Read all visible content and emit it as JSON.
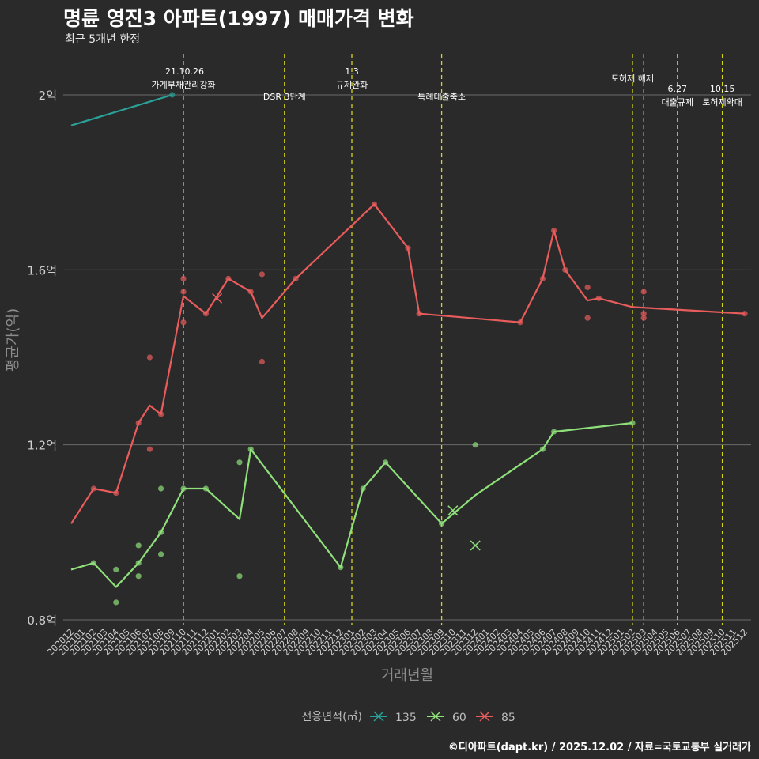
{
  "header": {
    "title": "명륜 영진3 아파트(1997) 매매가격 변화",
    "subtitle": "최근 5개년 한정"
  },
  "caption": "©디아파트(dapt.kr) / 2025.12.02 / 자료=국토교통부 실거래가",
  "chart_data": {
    "type": "line",
    "title": "명륜 영진3 아파트(1997) 매매가격 변화",
    "subtitle": "최근 5개년 한정",
    "xlabel": "거래년월",
    "ylabel": "평균가(억)",
    "x_categories": [
      "202012",
      "202101",
      "202102",
      "202103",
      "202104",
      "202105",
      "202106",
      "202107",
      "202108",
      "202109",
      "202110",
      "202111",
      "202112",
      "202201",
      "202202",
      "202203",
      "202204",
      "202205",
      "202206",
      "202207",
      "202208",
      "202209",
      "202210",
      "202211",
      "202212",
      "202301",
      "202302",
      "202303",
      "202304",
      "202305",
      "202306",
      "202307",
      "202308",
      "202309",
      "202310",
      "202311",
      "202312",
      "202401",
      "202402",
      "202403",
      "202404",
      "202405",
      "202406",
      "202407",
      "202408",
      "202409",
      "202410",
      "202411",
      "202412",
      "202501",
      "202502",
      "202503",
      "202504",
      "202505",
      "202506",
      "202507",
      "202508",
      "202509",
      "202510",
      "202511",
      "202512"
    ],
    "y_ticks": [
      {
        "value": 0.8,
        "label": "0.8억"
      },
      {
        "value": 1.2,
        "label": "1.2억"
      },
      {
        "value": 1.6,
        "label": "1.6억"
      },
      {
        "value": 2.0,
        "label": "2억"
      }
    ],
    "ylim": [
      0.78,
      2.12
    ],
    "legend_title": "전용면적(㎡)",
    "legend_position": "bottom",
    "series": [
      {
        "name": "135",
        "color": "#2aa198",
        "line": [
          [
            "202012",
            1.93
          ],
          [
            "202109",
            2.0
          ]
        ],
        "points": [
          [
            "202109",
            2.0
          ]
        ],
        "cross": []
      },
      {
        "name": "60",
        "color": "#8fe07a",
        "line": [
          [
            "202012",
            0.915
          ],
          [
            "202102",
            0.93
          ],
          [
            "202104",
            0.875
          ],
          [
            "202106",
            0.93
          ],
          [
            "202108",
            1.0
          ],
          [
            "202110",
            1.1
          ],
          [
            "202112",
            1.1
          ],
          [
            "202203",
            1.03
          ],
          [
            "202204",
            1.19
          ],
          [
            "202212",
            0.92
          ],
          [
            "202302",
            1.1
          ],
          [
            "202304",
            1.16
          ],
          [
            "202309",
            1.02
          ],
          [
            "202312",
            1.085
          ],
          [
            "202406",
            1.19
          ],
          [
            "202407",
            1.23
          ],
          [
            "202502",
            1.25
          ]
        ],
        "points": [
          [
            "202102",
            0.93
          ],
          [
            "202104",
            0.915
          ],
          [
            "202104",
            0.84
          ],
          [
            "202106",
            0.97
          ],
          [
            "202106",
            0.93
          ],
          [
            "202106",
            0.9
          ],
          [
            "202108",
            1.1
          ],
          [
            "202108",
            0.95
          ],
          [
            "202108",
            1.0
          ],
          [
            "202110",
            1.1
          ],
          [
            "202112",
            1.1
          ],
          [
            "202203",
            1.16
          ],
          [
            "202203",
            0.9
          ],
          [
            "202204",
            1.19
          ],
          [
            "202212",
            0.92
          ],
          [
            "202302",
            1.1
          ],
          [
            "202304",
            1.16
          ],
          [
            "202309",
            1.02
          ],
          [
            "202312",
            1.2
          ],
          [
            "202406",
            1.19
          ],
          [
            "202407",
            1.23
          ],
          [
            "202502",
            1.25
          ]
        ],
        "cross": [
          [
            "202310",
            1.05
          ],
          [
            "202312",
            0.97
          ]
        ]
      },
      {
        "name": "85",
        "color": "#e85c5c",
        "line": [
          [
            "202012",
            1.02
          ],
          [
            "202102",
            1.1
          ],
          [
            "202104",
            1.09
          ],
          [
            "202106",
            1.25
          ],
          [
            "202107",
            1.29
          ],
          [
            "202108",
            1.27
          ],
          [
            "202110",
            1.54
          ],
          [
            "202112",
            1.5
          ],
          [
            "202202",
            1.58
          ],
          [
            "202204",
            1.55
          ],
          [
            "202205",
            1.49
          ],
          [
            "202208",
            1.58
          ],
          [
            "202303",
            1.75
          ],
          [
            "202306",
            1.65
          ],
          [
            "202307",
            1.5
          ],
          [
            "202404",
            1.48
          ],
          [
            "202406",
            1.58
          ],
          [
            "202407",
            1.69
          ],
          [
            "202408",
            1.6
          ],
          [
            "202410",
            1.53
          ],
          [
            "202411",
            1.535
          ],
          [
            "202502",
            1.515
          ],
          [
            "202512",
            1.5
          ]
        ],
        "points": [
          [
            "202102",
            1.1
          ],
          [
            "202104",
            1.09
          ],
          [
            "202106",
            1.25
          ],
          [
            "202107",
            1.4
          ],
          [
            "202107",
            1.19
          ],
          [
            "202108",
            1.27
          ],
          [
            "202110",
            1.58
          ],
          [
            "202110",
            1.55
          ],
          [
            "202110",
            1.48
          ],
          [
            "202112",
            1.5
          ],
          [
            "202202",
            1.58
          ],
          [
            "202204",
            1.55
          ],
          [
            "202205",
            1.59
          ],
          [
            "202205",
            1.39
          ],
          [
            "202208",
            1.58
          ],
          [
            "202303",
            1.75
          ],
          [
            "202306",
            1.65
          ],
          [
            "202307",
            1.5
          ],
          [
            "202404",
            1.48
          ],
          [
            "202406",
            1.58
          ],
          [
            "202407",
            1.69
          ],
          [
            "202408",
            1.6
          ],
          [
            "202410",
            1.56
          ],
          [
            "202410",
            1.49
          ],
          [
            "202411",
            1.535
          ],
          [
            "202503",
            1.55
          ],
          [
            "202503",
            1.5
          ],
          [
            "202503",
            1.49
          ],
          [
            "202512",
            1.5
          ]
        ],
        "cross": [
          [
            "202201",
            1.535
          ]
        ]
      }
    ],
    "annotations": [
      {
        "x": "202110",
        "lines": [
          "'21.10.26",
          "가계부채관리강화"
        ],
        "level": "high"
      },
      {
        "x": "202207",
        "lines": [
          "DSR 3단계"
        ],
        "level": "low"
      },
      {
        "x": "202301",
        "lines": [
          "1.3",
          "규제완화"
        ],
        "level": "high"
      },
      {
        "x": "202309",
        "lines": [
          "특례대출축소"
        ],
        "level": "low"
      },
      {
        "x": "202502",
        "lines": [
          "토허제 해제"
        ],
        "level": "mid"
      },
      {
        "x": "202503",
        "lines": [],
        "level": "none"
      },
      {
        "x": "202506",
        "lines": [
          "6.27",
          "대출규제"
        ],
        "level": "high2"
      },
      {
        "x": "202510",
        "lines": [
          "10.15",
          "토허제확대"
        ],
        "level": "high2"
      }
    ],
    "annotation_line_color": "#d4d41c"
  }
}
